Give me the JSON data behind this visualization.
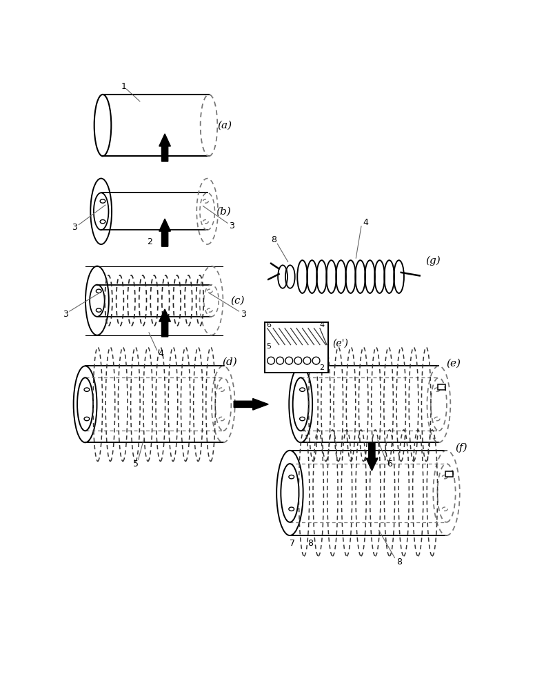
{
  "bg_color": "#ffffff",
  "lc": "#000000",
  "dc": "#777777",
  "fig_width": 7.76,
  "fig_height": 10.0,
  "labels": {
    "a": "(a)",
    "b": "(b)",
    "c": "(c)",
    "d": "(d)",
    "e": "(e)",
    "e2": "(e')",
    "f": "(f)",
    "g": "(g)"
  }
}
